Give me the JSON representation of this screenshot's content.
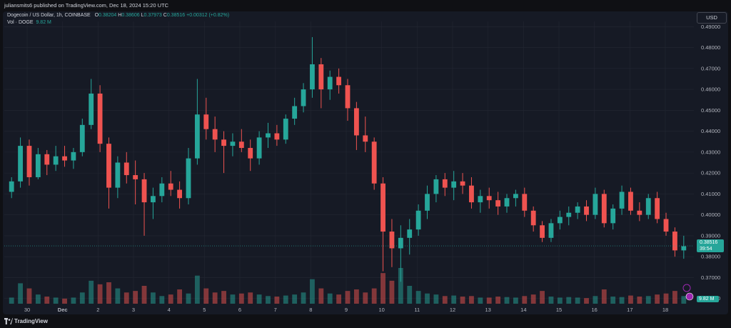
{
  "header": {
    "published_text": "juliansmits6 published on TradingView.com, Dec 18, 2024 15:20 UTC"
  },
  "legend": {
    "symbol": "Dogecoin / US Dollar, 1h, COINBASE",
    "o_label": "O",
    "o_value": "0.38204",
    "h_label": "H",
    "h_value": "0.38606",
    "l_label": "L",
    "l_value": "0.37973",
    "c_label": "C",
    "c_value": "0.38516",
    "change": "+0.00312 (+0.82%)",
    "vol_label": "Vol · DOGE",
    "vol_value": "9.82 M"
  },
  "currency_button": "USD",
  "price_tag": {
    "price": "0.38516",
    "countdown": "39:54"
  },
  "volume_tag": "9.82 M",
  "footer": {
    "brand": "TradingView"
  },
  "colors": {
    "up": "#26a69a",
    "down": "#ef5350",
    "background": "#161a25",
    "grid": "#232733",
    "text": "#b2b5be"
  },
  "chart_data": {
    "type": "candlestick",
    "title": "Dogecoin / US Dollar, 1h, COINBASE",
    "x_ticks": [
      "30",
      "Dec",
      "2",
      "3",
      "4",
      "5",
      "6",
      "7",
      "8",
      "9",
      "10",
      "11",
      "12",
      "13",
      "14",
      "15",
      "16",
      "17",
      "18"
    ],
    "y_ticks": [
      "0.49000",
      "0.48000",
      "0.47000",
      "0.46000",
      "0.45000",
      "0.44000",
      "0.43000",
      "0.42000",
      "0.41000",
      "0.40000",
      "0.39000",
      "0.38000",
      "0.37000",
      "0.36000"
    ],
    "ylim": [
      0.3575,
      0.4925
    ],
    "x": [
      "Nov 29 12:00",
      "Nov 29 18:00",
      "Nov 30 00:00",
      "Nov 30 06:00",
      "Nov 30 12:00",
      "Nov 30 18:00",
      "Dec 1 00:00",
      "Dec 1 06:00",
      "Dec 1 12:00",
      "Dec 1 18:00",
      "Dec 2 00:00",
      "Dec 2 06:00",
      "Dec 2 12:00",
      "Dec 2 18:00",
      "Dec 3 00:00",
      "Dec 3 06:00",
      "Dec 3 12:00",
      "Dec 3 18:00",
      "Dec 4 00:00",
      "Dec 4 06:00",
      "Dec 4 12:00",
      "Dec 4 18:00",
      "Dec 5 00:00",
      "Dec 5 06:00",
      "Dec 5 12:00",
      "Dec 5 18:00",
      "Dec 6 00:00",
      "Dec 6 06:00",
      "Dec 6 12:00",
      "Dec 6 18:00",
      "Dec 7 00:00",
      "Dec 7 06:00",
      "Dec 7 12:00",
      "Dec 7 18:00",
      "Dec 8 00:00",
      "Dec 8 06:00",
      "Dec 8 12:00",
      "Dec 8 18:00",
      "Dec 9 00:00",
      "Dec 9 06:00",
      "Dec 9 12:00",
      "Dec 9 18:00",
      "Dec 10 00:00",
      "Dec 10 06:00",
      "Dec 10 12:00",
      "Dec 10 18:00",
      "Dec 11 00:00",
      "Dec 11 06:00",
      "Dec 11 12:00",
      "Dec 11 18:00",
      "Dec 12 00:00",
      "Dec 12 06:00",
      "Dec 12 12:00",
      "Dec 12 18:00",
      "Dec 13 00:00",
      "Dec 13 06:00",
      "Dec 13 12:00",
      "Dec 13 18:00",
      "Dec 14 00:00",
      "Dec 14 06:00",
      "Dec 14 12:00",
      "Dec 14 18:00",
      "Dec 15 00:00",
      "Dec 15 06:00",
      "Dec 15 12:00",
      "Dec 15 18:00",
      "Dec 16 00:00",
      "Dec 16 06:00",
      "Dec 16 12:00",
      "Dec 16 18:00",
      "Dec 17 00:00",
      "Dec 17 06:00",
      "Dec 17 12:00",
      "Dec 17 18:00",
      "Dec 18 00:00",
      "Dec 18 06:00",
      "Dec 18 12:00"
    ],
    "candles": [
      {
        "o": 0.411,
        "h": 0.418,
        "l": 0.408,
        "c": 0.416
      },
      {
        "o": 0.416,
        "h": 0.437,
        "l": 0.413,
        "c": 0.433
      },
      {
        "o": 0.433,
        "h": 0.436,
        "l": 0.414,
        "c": 0.418
      },
      {
        "o": 0.418,
        "h": 0.432,
        "l": 0.417,
        "c": 0.429
      },
      {
        "o": 0.429,
        "h": 0.431,
        "l": 0.419,
        "c": 0.424
      },
      {
        "o": 0.424,
        "h": 0.433,
        "l": 0.421,
        "c": 0.428
      },
      {
        "o": 0.428,
        "h": 0.433,
        "l": 0.423,
        "c": 0.426
      },
      {
        "o": 0.426,
        "h": 0.432,
        "l": 0.422,
        "c": 0.43
      },
      {
        "o": 0.43,
        "h": 0.446,
        "l": 0.428,
        "c": 0.443
      },
      {
        "o": 0.443,
        "h": 0.465,
        "l": 0.441,
        "c": 0.458
      },
      {
        "o": 0.458,
        "h": 0.462,
        "l": 0.43,
        "c": 0.434
      },
      {
        "o": 0.434,
        "h": 0.437,
        "l": 0.403,
        "c": 0.413
      },
      {
        "o": 0.413,
        "h": 0.428,
        "l": 0.408,
        "c": 0.425
      },
      {
        "o": 0.425,
        "h": 0.43,
        "l": 0.415,
        "c": 0.419
      },
      {
        "o": 0.419,
        "h": 0.426,
        "l": 0.405,
        "c": 0.417
      },
      {
        "o": 0.417,
        "h": 0.42,
        "l": 0.39,
        "c": 0.406
      },
      {
        "o": 0.406,
        "h": 0.413,
        "l": 0.398,
        "c": 0.409
      },
      {
        "o": 0.409,
        "h": 0.418,
        "l": 0.406,
        "c": 0.415
      },
      {
        "o": 0.415,
        "h": 0.421,
        "l": 0.409,
        "c": 0.412
      },
      {
        "o": 0.412,
        "h": 0.416,
        "l": 0.403,
        "c": 0.408
      },
      {
        "o": 0.408,
        "h": 0.432,
        "l": 0.405,
        "c": 0.427
      },
      {
        "o": 0.427,
        "h": 0.465,
        "l": 0.424,
        "c": 0.448
      },
      {
        "o": 0.448,
        "h": 0.456,
        "l": 0.436,
        "c": 0.441
      },
      {
        "o": 0.441,
        "h": 0.447,
        "l": 0.43,
        "c": 0.436
      },
      {
        "o": 0.436,
        "h": 0.44,
        "l": 0.42,
        "c": 0.433
      },
      {
        "o": 0.433,
        "h": 0.439,
        "l": 0.428,
        "c": 0.435
      },
      {
        "o": 0.435,
        "h": 0.441,
        "l": 0.43,
        "c": 0.432
      },
      {
        "o": 0.432,
        "h": 0.436,
        "l": 0.421,
        "c": 0.427
      },
      {
        "o": 0.427,
        "h": 0.44,
        "l": 0.424,
        "c": 0.437
      },
      {
        "o": 0.437,
        "h": 0.444,
        "l": 0.432,
        "c": 0.439
      },
      {
        "o": 0.439,
        "h": 0.443,
        "l": 0.433,
        "c": 0.436
      },
      {
        "o": 0.436,
        "h": 0.448,
        "l": 0.434,
        "c": 0.446
      },
      {
        "o": 0.446,
        "h": 0.456,
        "l": 0.443,
        "c": 0.452
      },
      {
        "o": 0.452,
        "h": 0.463,
        "l": 0.449,
        "c": 0.46
      },
      {
        "o": 0.46,
        "h": 0.485,
        "l": 0.456,
        "c": 0.472
      },
      {
        "o": 0.472,
        "h": 0.475,
        "l": 0.451,
        "c": 0.46
      },
      {
        "o": 0.46,
        "h": 0.469,
        "l": 0.455,
        "c": 0.466
      },
      {
        "o": 0.466,
        "h": 0.47,
        "l": 0.458,
        "c": 0.462
      },
      {
        "o": 0.462,
        "h": 0.465,
        "l": 0.445,
        "c": 0.451
      },
      {
        "o": 0.451,
        "h": 0.454,
        "l": 0.431,
        "c": 0.438
      },
      {
        "o": 0.438,
        "h": 0.447,
        "l": 0.43,
        "c": 0.435
      },
      {
        "o": 0.435,
        "h": 0.437,
        "l": 0.412,
        "c": 0.415
      },
      {
        "o": 0.415,
        "h": 0.418,
        "l": 0.373,
        "c": 0.392
      },
      {
        "o": 0.392,
        "h": 0.398,
        "l": 0.375,
        "c": 0.384
      },
      {
        "o": 0.384,
        "h": 0.395,
        "l": 0.368,
        "c": 0.389
      },
      {
        "o": 0.389,
        "h": 0.398,
        "l": 0.381,
        "c": 0.393
      },
      {
        "o": 0.393,
        "h": 0.405,
        "l": 0.39,
        "c": 0.402
      },
      {
        "o": 0.402,
        "h": 0.414,
        "l": 0.398,
        "c": 0.41
      },
      {
        "o": 0.41,
        "h": 0.419,
        "l": 0.406,
        "c": 0.417
      },
      {
        "o": 0.417,
        "h": 0.42,
        "l": 0.409,
        "c": 0.413
      },
      {
        "o": 0.413,
        "h": 0.421,
        "l": 0.407,
        "c": 0.416
      },
      {
        "o": 0.416,
        "h": 0.42,
        "l": 0.41,
        "c": 0.414
      },
      {
        "o": 0.414,
        "h": 0.418,
        "l": 0.403,
        "c": 0.406
      },
      {
        "o": 0.406,
        "h": 0.412,
        "l": 0.401,
        "c": 0.409
      },
      {
        "o": 0.409,
        "h": 0.413,
        "l": 0.403,
        "c": 0.407
      },
      {
        "o": 0.407,
        "h": 0.411,
        "l": 0.4,
        "c": 0.404
      },
      {
        "o": 0.404,
        "h": 0.41,
        "l": 0.401,
        "c": 0.408
      },
      {
        "o": 0.408,
        "h": 0.412,
        "l": 0.404,
        "c": 0.41
      },
      {
        "o": 0.41,
        "h": 0.413,
        "l": 0.399,
        "c": 0.402
      },
      {
        "o": 0.402,
        "h": 0.404,
        "l": 0.392,
        "c": 0.395
      },
      {
        "o": 0.395,
        "h": 0.397,
        "l": 0.387,
        "c": 0.389
      },
      {
        "o": 0.389,
        "h": 0.398,
        "l": 0.387,
        "c": 0.396
      },
      {
        "o": 0.396,
        "h": 0.402,
        "l": 0.393,
        "c": 0.399
      },
      {
        "o": 0.399,
        "h": 0.404,
        "l": 0.395,
        "c": 0.401
      },
      {
        "o": 0.401,
        "h": 0.406,
        "l": 0.398,
        "c": 0.404
      },
      {
        "o": 0.404,
        "h": 0.407,
        "l": 0.397,
        "c": 0.4
      },
      {
        "o": 0.4,
        "h": 0.413,
        "l": 0.398,
        "c": 0.41
      },
      {
        "o": 0.41,
        "h": 0.412,
        "l": 0.394,
        "c": 0.396
      },
      {
        "o": 0.396,
        "h": 0.405,
        "l": 0.393,
        "c": 0.403
      },
      {
        "o": 0.403,
        "h": 0.414,
        "l": 0.4,
        "c": 0.411
      },
      {
        "o": 0.411,
        "h": 0.413,
        "l": 0.4,
        "c": 0.402
      },
      {
        "o": 0.402,
        "h": 0.406,
        "l": 0.397,
        "c": 0.4
      },
      {
        "o": 0.4,
        "h": 0.41,
        "l": 0.398,
        "c": 0.408
      },
      {
        "o": 0.408,
        "h": 0.411,
        "l": 0.396,
        "c": 0.398
      },
      {
        "o": 0.398,
        "h": 0.401,
        "l": 0.39,
        "c": 0.392
      },
      {
        "o": 0.392,
        "h": 0.394,
        "l": 0.38,
        "c": 0.383
      },
      {
        "o": 0.383,
        "h": 0.39,
        "l": 0.379,
        "c": 0.385
      }
    ],
    "volume": [
      12,
      40,
      30,
      18,
      14,
      12,
      10,
      12,
      22,
      45,
      38,
      42,
      30,
      22,
      25,
      35,
      22,
      15,
      18,
      28,
      20,
      55,
      30,
      22,
      25,
      18,
      20,
      22,
      18,
      15,
      14,
      16,
      18,
      22,
      48,
      30,
      20,
      18,
      25,
      28,
      22,
      30,
      60,
      45,
      70,
      35,
      25,
      20,
      18,
      15,
      16,
      14,
      15,
      12,
      12,
      14,
      13,
      12,
      15,
      18,
      25,
      14,
      12,
      13,
      12,
      11,
      15,
      28,
      14,
      13,
      16,
      14,
      15,
      18,
      20,
      25,
      15
    ],
    "last_price": 0.38516
  }
}
